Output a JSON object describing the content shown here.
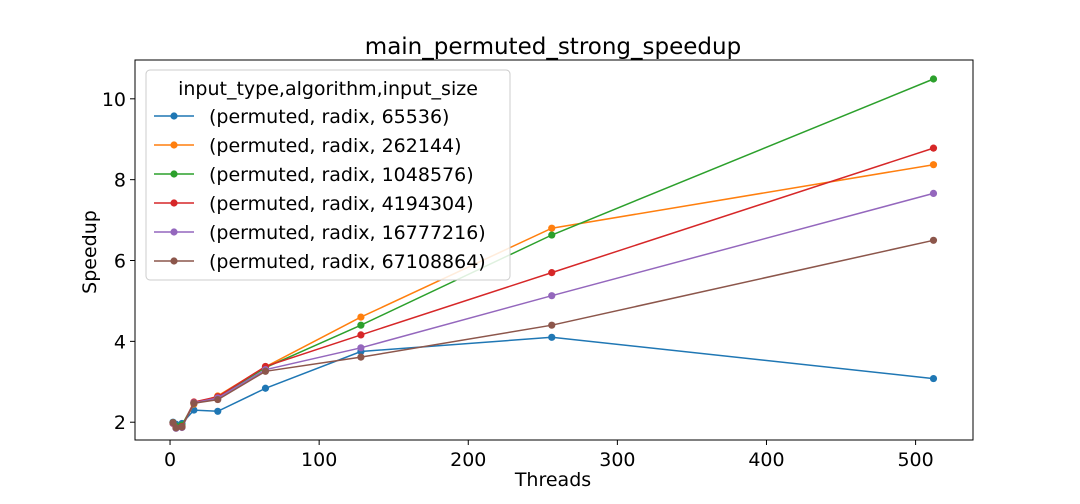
{
  "chart_data": {
    "type": "line",
    "title": "main_permuted_strong_speedup",
    "xlabel": "Threads",
    "ylabel": "Speedup",
    "xlim": [
      -23.5,
      538.5
    ],
    "ylim": [
      1.56,
      10.96
    ],
    "xticks": [
      0,
      100,
      200,
      300,
      400,
      500
    ],
    "yticks": [
      2,
      4,
      6,
      8,
      10
    ],
    "grid": false,
    "legend_title": "input_type,algorithm,input_size",
    "legend_position": "upper-left",
    "x": [
      2,
      4,
      8,
      16,
      32,
      64,
      128,
      256,
      512
    ],
    "series": [
      {
        "name": "(permuted, radix, 65536)",
        "color": "#1f77b4",
        "values": [
          2.0,
          1.95,
          1.97,
          2.3,
          2.27,
          2.84,
          3.75,
          4.1,
          3.08
        ]
      },
      {
        "name": "(permuted, radix, 262144)",
        "color": "#ff7f0e",
        "values": [
          1.98,
          1.88,
          1.9,
          2.45,
          2.65,
          3.37,
          4.6,
          6.8,
          8.37
        ]
      },
      {
        "name": "(permuted, radix, 1048576)",
        "color": "#2ca02c",
        "values": [
          1.99,
          1.9,
          1.93,
          2.47,
          2.62,
          3.35,
          4.4,
          6.63,
          10.49
        ]
      },
      {
        "name": "(permuted, radix, 4194304)",
        "color": "#d62728",
        "values": [
          1.97,
          1.86,
          1.89,
          2.5,
          2.63,
          3.38,
          4.16,
          5.7,
          8.78
        ]
      },
      {
        "name": "(permuted, radix, 16777216)",
        "color": "#9467bd",
        "values": [
          1.98,
          1.85,
          1.87,
          2.48,
          2.6,
          3.3,
          3.84,
          5.13,
          7.66
        ]
      },
      {
        "name": "(permuted, radix, 67108864)",
        "color": "#8c564b",
        "values": [
          1.99,
          1.86,
          1.88,
          2.47,
          2.56,
          3.26,
          3.61,
          4.4,
          6.5
        ]
      }
    ]
  }
}
